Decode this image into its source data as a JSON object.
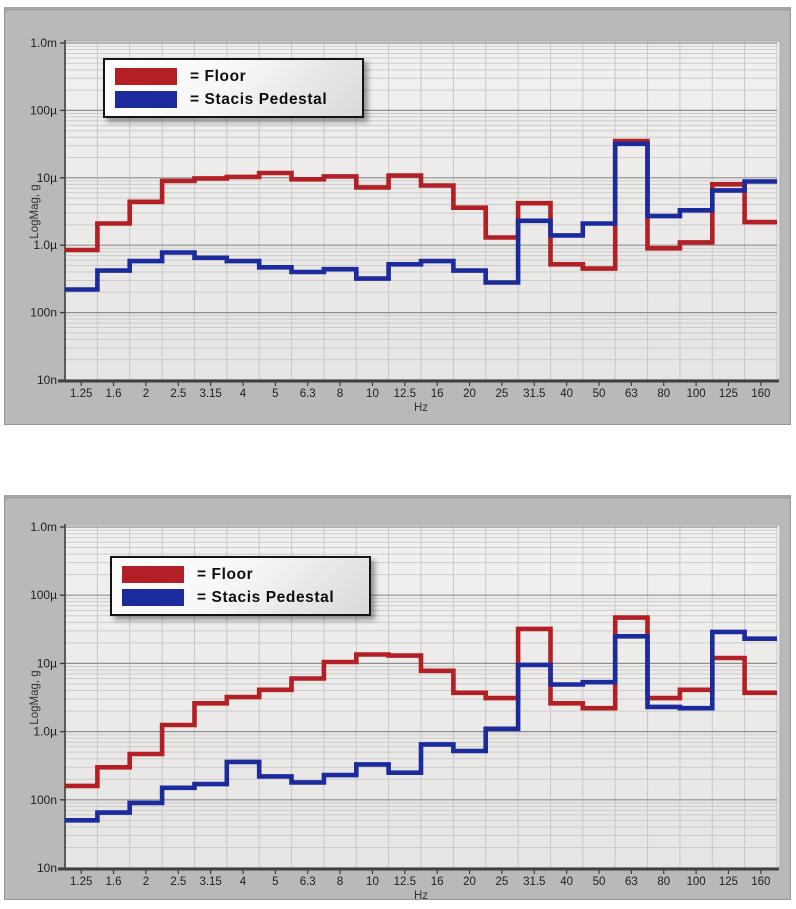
{
  "colors": {
    "floor": "#b22025",
    "pedestal": "#1c2b9b",
    "panel_bg": "#b9b9b9",
    "plot_bg_light": "#f2f1ef",
    "plot_bg_dark": "#e6e5e3",
    "grid_major": "#8f8f8f",
    "grid_minor": "#cbcbcb",
    "grid_vertical": "#c7c7c7",
    "axis": "#3f3f3f",
    "tick_text": "#1f1f1f",
    "axis_label_text": "#333333"
  },
  "legend": {
    "floor_label": "= Floor",
    "pedestal_label": "= Stacis Pedestal"
  },
  "chart_data": [
    {
      "id": "top-chart",
      "type": "line",
      "subtype": "step-line, 1/3-octave bands, log y-axis",
      "xlabel": "Hz",
      "ylabel": "LogMag, g",
      "ylim": [
        1e-08,
        0.001
      ],
      "ytick_labels": [
        "1.0m",
        "100µ",
        "10µ",
        "1.0µ",
        "100n",
        "10n"
      ],
      "ytick_values": [
        0.001,
        0.0001,
        1e-05,
        1e-06,
        1e-07,
        1e-08
      ],
      "categories_hz": [
        "1.25",
        "1.6",
        "2",
        "2.5",
        "3.15",
        "4",
        "5",
        "6.3",
        "8",
        "10",
        "12.5",
        "16",
        "20",
        "25",
        "31.5",
        "40",
        "50",
        "63",
        "80",
        "100",
        "125",
        "160"
      ],
      "grid": true,
      "legend_position": "top-left",
      "series": [
        {
          "name": "Floor",
          "color_key": "floor",
          "values_g": [
            8.5e-07,
            2.1e-06,
            4.4e-06,
            9e-06,
            9.8e-06,
            1.03e-05,
            1.18e-05,
            9.5e-06,
            1.05e-05,
            7.2e-06,
            1.08e-05,
            7.7e-06,
            3.6e-06,
            1.3e-06,
            4.2e-06,
            5.2e-07,
            4.5e-07,
            3.5e-05,
            9e-07,
            1.1e-06,
            8e-06,
            2.2e-06
          ]
        },
        {
          "name": "Stacis Pedestal",
          "color_key": "pedestal",
          "values_g": [
            2.2e-07,
            4.2e-07,
            5.8e-07,
            7.8e-07,
            6.5e-07,
            5.8e-07,
            4.7e-07,
            4e-07,
            4.4e-07,
            3.2e-07,
            5.2e-07,
            5.8e-07,
            4.2e-07,
            2.8e-07,
            2.3e-06,
            1.4e-06,
            2.1e-06,
            3.2e-05,
            2.7e-06,
            3.3e-06,
            6.5e-06,
            8.8e-06
          ]
        }
      ]
    },
    {
      "id": "bottom-chart",
      "type": "line",
      "subtype": "step-line, 1/3-octave bands, log y-axis",
      "xlabel": "Hz",
      "ylabel": "LogMag, g",
      "ylim": [
        1e-08,
        0.001
      ],
      "ytick_labels": [
        "1.0m",
        "100µ",
        "10µ",
        "1.0µ",
        "100n",
        "10n"
      ],
      "ytick_values": [
        0.001,
        0.0001,
        1e-05,
        1e-06,
        1e-07,
        1e-08
      ],
      "categories_hz": [
        "1.25",
        "1.6",
        "2",
        "2.5",
        "3.15",
        "4",
        "5",
        "6.3",
        "8",
        "10",
        "12.5",
        "16",
        "20",
        "25",
        "31.5",
        "40",
        "50",
        "63",
        "80",
        "100",
        "125",
        "160"
      ],
      "grid": true,
      "legend_position": "top-left",
      "series": [
        {
          "name": "Floor",
          "color_key": "floor",
          "values_g": [
            1.6e-07,
            3e-07,
            4.7e-07,
            1.25e-06,
            2.6e-06,
            3.2e-06,
            4.1e-06,
            6e-06,
            1.05e-05,
            1.35e-05,
            1.3e-05,
            7.8e-06,
            3.7e-06,
            3.1e-06,
            3.2e-05,
            2.6e-06,
            2.2e-06,
            4.7e-05,
            3.1e-06,
            4.1e-06,
            1.2e-05,
            3.7e-06
          ]
        },
        {
          "name": "Stacis Pedestal",
          "color_key": "pedestal",
          "values_g": [
            5e-08,
            6.5e-08,
            9e-08,
            1.5e-07,
            1.7e-07,
            3.6e-07,
            2.2e-07,
            1.8e-07,
            2.3e-07,
            3.3e-07,
            2.5e-07,
            6.5e-07,
            5.2e-07,
            1.1e-06,
            9.5e-06,
            4.9e-06,
            5.3e-06,
            2.5e-05,
            2.3e-06,
            2.2e-06,
            2.9e-05,
            2.3e-05
          ]
        }
      ]
    }
  ]
}
